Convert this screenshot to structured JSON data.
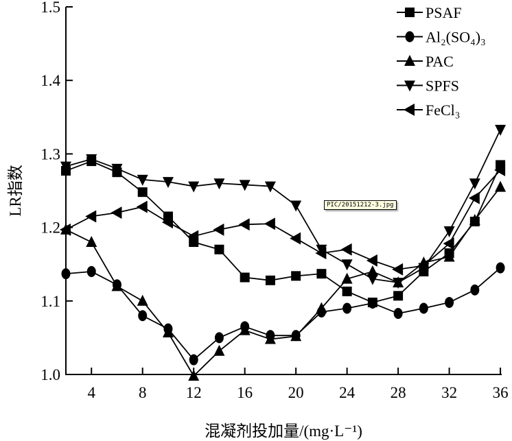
{
  "chart_data": {
    "type": "line",
    "xlabel": "混凝剂投加量/(mg·L⁻¹)",
    "ylabel": "LR指数",
    "xlim": [
      2,
      36
    ],
    "ylim": [
      1.0,
      1.5
    ],
    "xticks": [
      4,
      8,
      12,
      16,
      20,
      24,
      28,
      32,
      36
    ],
    "yticks": [
      "1.0",
      "1.1",
      "1.2",
      "1.3",
      "1.4",
      "1.5"
    ],
    "grid": false,
    "legend_position": "top-right",
    "x": [
      2,
      4,
      6,
      8,
      10,
      12,
      14,
      16,
      18,
      20,
      22,
      24,
      26,
      28,
      30,
      32,
      34,
      36
    ],
    "series": [
      {
        "name": "PSAF",
        "marker": "square",
        "values": [
          1.277,
          1.29,
          1.275,
          1.248,
          1.215,
          1.18,
          1.17,
          1.132,
          1.128,
          1.134,
          1.137,
          1.113,
          1.098,
          1.107,
          1.14,
          1.165,
          1.208,
          1.285
        ]
      },
      {
        "name": "Al₂(SO₄)₃",
        "marker": "circle",
        "values": [
          1.137,
          1.14,
          1.122,
          1.08,
          1.062,
          1.02,
          1.05,
          1.065,
          1.053,
          1.053,
          1.085,
          1.09,
          1.097,
          1.083,
          1.09,
          1.098,
          1.115,
          1.145
        ]
      },
      {
        "name": "PAC",
        "marker": "triangle-up",
        "values": [
          1.197,
          1.18,
          1.12,
          1.1,
          1.057,
          0.998,
          1.032,
          1.06,
          1.048,
          1.052,
          1.09,
          1.13,
          1.14,
          1.125,
          1.152,
          1.16,
          1.21,
          1.255
        ]
      },
      {
        "name": "SPFS",
        "marker": "triangle-down",
        "values": [
          1.283,
          1.293,
          1.28,
          1.265,
          1.262,
          1.256,
          1.26,
          1.258,
          1.256,
          1.23,
          1.17,
          1.15,
          1.13,
          1.125,
          1.145,
          1.195,
          1.26,
          1.333
        ]
      },
      {
        "name": "FeCl₃",
        "marker": "triangle-left",
        "values": [
          1.197,
          1.215,
          1.22,
          1.228,
          1.207,
          1.188,
          1.197,
          1.204,
          1.205,
          1.185,
          1.165,
          1.17,
          1.155,
          1.143,
          1.148,
          1.178,
          1.24,
          1.278
        ]
      }
    ]
  },
  "tooltip": "PIC/20151212-3.jpg"
}
